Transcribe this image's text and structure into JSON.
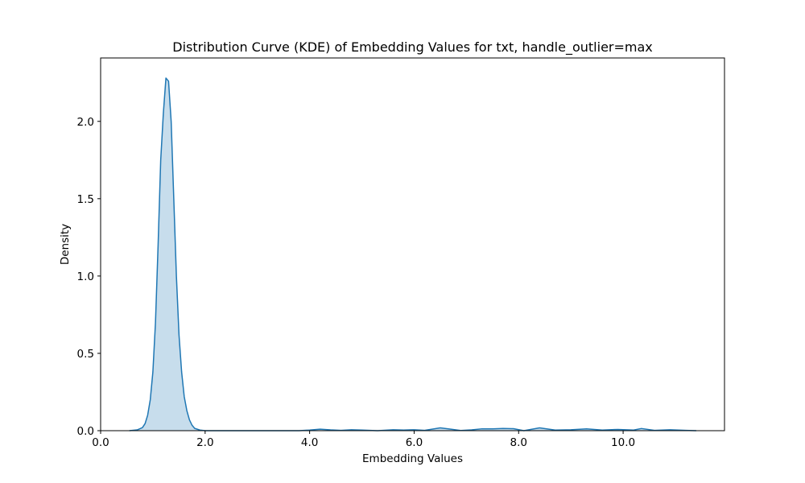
{
  "chart_data": {
    "type": "area",
    "title": "Distribution Curve (KDE) of Embedding Values for txt, handle_outlier=max",
    "xlabel": "Embedding Values",
    "ylabel": "Density",
    "xlim": [
      0.0,
      11.94
    ],
    "ylim": [
      0.0,
      2.41
    ],
    "xticks": [
      0.0,
      2.0,
      4.0,
      6.0,
      8.0,
      10.0
    ],
    "xtick_labels": [
      "0.0",
      "2.0",
      "4.0",
      "6.0",
      "8.0",
      "10.0"
    ],
    "yticks": [
      0.0,
      0.5,
      1.0,
      1.5,
      2.0
    ],
    "ytick_labels": [
      "0.0",
      "0.5",
      "1.0",
      "1.5",
      "2.0"
    ],
    "grid": false,
    "legend": "none",
    "series": [
      {
        "color": "#1f77b4",
        "fill_color": "#1f77b4",
        "fill_opacity": 0.25,
        "x": [
          0.55,
          0.7,
          0.8,
          0.85,
          0.9,
          0.95,
          1.0,
          1.05,
          1.1,
          1.15,
          1.2,
          1.25,
          1.3,
          1.35,
          1.4,
          1.45,
          1.5,
          1.55,
          1.6,
          1.65,
          1.7,
          1.75,
          1.8,
          1.9,
          2.0,
          2.5,
          3.0,
          3.8,
          4.0,
          4.2,
          4.4,
          4.6,
          4.8,
          5.0,
          5.3,
          5.6,
          5.8,
          6.0,
          6.2,
          6.5,
          6.7,
          6.9,
          7.1,
          7.3,
          7.5,
          7.7,
          7.9,
          8.1,
          8.4,
          8.7,
          9.0,
          9.3,
          9.6,
          9.9,
          10.2,
          10.35,
          10.6,
          10.9,
          11.2,
          11.4
        ],
        "y": [
          0.0,
          0.005,
          0.02,
          0.045,
          0.1,
          0.2,
          0.38,
          0.7,
          1.2,
          1.75,
          2.05,
          2.28,
          2.26,
          2.0,
          1.5,
          1.0,
          0.62,
          0.38,
          0.22,
          0.13,
          0.07,
          0.035,
          0.015,
          0.004,
          0.0,
          0.0,
          0.0,
          0.0,
          0.004,
          0.01,
          0.005,
          0.002,
          0.006,
          0.004,
          0.0,
          0.006,
          0.004,
          0.006,
          0.002,
          0.018,
          0.01,
          0.001,
          0.005,
          0.012,
          0.012,
          0.014,
          0.013,
          0.0,
          0.018,
          0.004,
          0.006,
          0.012,
          0.004,
          0.008,
          0.004,
          0.014,
          0.002,
          0.006,
          0.002,
          0.0
        ]
      }
    ]
  }
}
